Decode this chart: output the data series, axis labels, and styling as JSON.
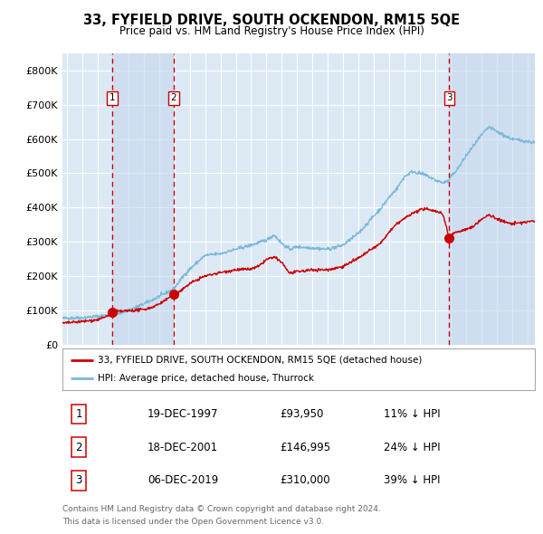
{
  "title": "33, FYFIELD DRIVE, SOUTH OCKENDON, RM15 5QE",
  "subtitle": "Price paid vs. HM Land Registry's House Price Index (HPI)",
  "legend_line1": "33, FYFIELD DRIVE, SOUTH OCKENDON, RM15 5QE (detached house)",
  "legend_line2": "HPI: Average price, detached house, Thurrock",
  "footer1": "Contains HM Land Registry data © Crown copyright and database right 2024.",
  "footer2": "This data is licensed under the Open Government Licence v3.0.",
  "transactions": [
    {
      "label": "1",
      "date": "19-DEC-1997",
      "price": 93950,
      "pct": "11%",
      "dir": "↓",
      "year": 1997.96
    },
    {
      "label": "2",
      "date": "18-DEC-2001",
      "price": 146995,
      "pct": "24%",
      "dir": "↓",
      "year": 2001.96
    },
    {
      "label": "3",
      "date": "06-DEC-2019",
      "price": 310000,
      "pct": "39%",
      "dir": "↓",
      "year": 2019.92
    }
  ],
  "table_rows": [
    {
      "num": "1",
      "date": "19-DEC-1997",
      "price": "£93,950",
      "stat": "11% ↓ HPI"
    },
    {
      "num": "2",
      "date": "18-DEC-2001",
      "price": "£146,995",
      "stat": "24% ↓ HPI"
    },
    {
      "num": "3",
      "date": "06-DEC-2019",
      "price": "£310,000",
      "stat": "39% ↓ HPI"
    }
  ],
  "hpi_color": "#7ab8d9",
  "price_color": "#cc0000",
  "bg_color": "#dce9f5",
  "grid_color": "#ffffff",
  "shade_color": "#c5d8ee",
  "dashed_color": "#cc0000",
  "ylim": [
    0,
    850000
  ],
  "yticks": [
    0,
    100000,
    200000,
    300000,
    400000,
    500000,
    600000,
    700000,
    800000
  ],
  "xlim_start": 1994.7,
  "xlim_end": 2025.5
}
